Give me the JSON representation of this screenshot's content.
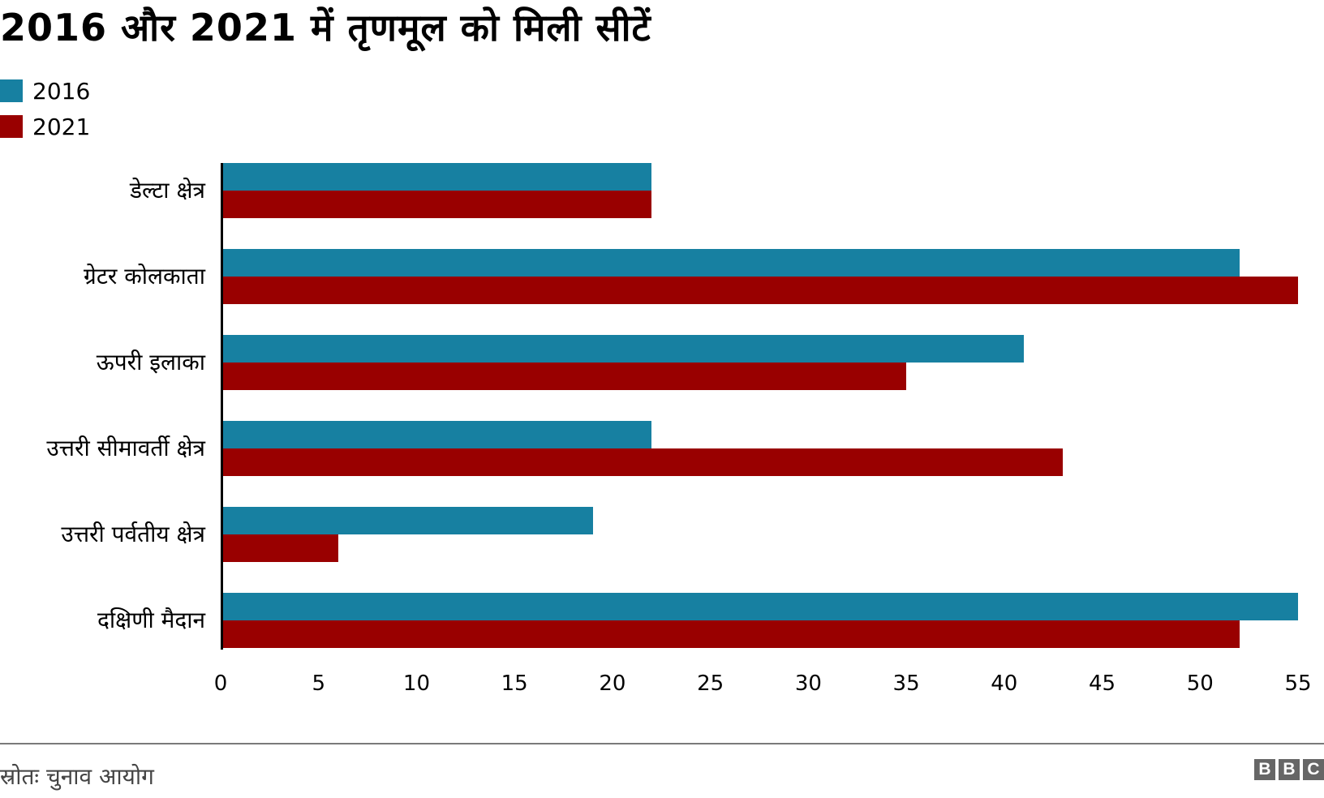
{
  "header": {
    "title": "2016 और 2021 में तृणमूल को मिली सीटें"
  },
  "legend": [
    {
      "label": "2016",
      "color": "#1780a1"
    },
    {
      "label": "2021",
      "color": "#990000"
    }
  ],
  "footer": {
    "source": "स्रोतः चुनाव आयोग",
    "logo": [
      "B",
      "B",
      "C"
    ]
  },
  "chart_data": {
    "type": "bar",
    "orientation": "horizontal",
    "title": "2016 और 2021 में तृणमूल को मिली सीटें",
    "xlabel": "",
    "ylabel": "",
    "categories": [
      "डेल्टा क्षेत्र",
      "ग्रेटर कोलकाता",
      "ऊपरी इलाका",
      "उत्तरी सीमावर्ती क्षेत्र",
      "उत्तरी पर्वतीय क्षेत्र",
      "दक्षिणी मैदान"
    ],
    "series": [
      {
        "name": "2016",
        "color": "#1780a1",
        "values": [
          22,
          52,
          41,
          22,
          19,
          55
        ]
      },
      {
        "name": "2021",
        "color": "#990000",
        "values": [
          22,
          55,
          35,
          43,
          6,
          52
        ]
      }
    ],
    "xlim": [
      0,
      55
    ],
    "xticks": [
      "0",
      "5",
      "10",
      "15",
      "20",
      "25",
      "30",
      "35",
      "40",
      "45",
      "50",
      "55"
    ],
    "grid": false,
    "legend_position": "top-left",
    "source": "स्रोतः चुनाव आयोग"
  }
}
